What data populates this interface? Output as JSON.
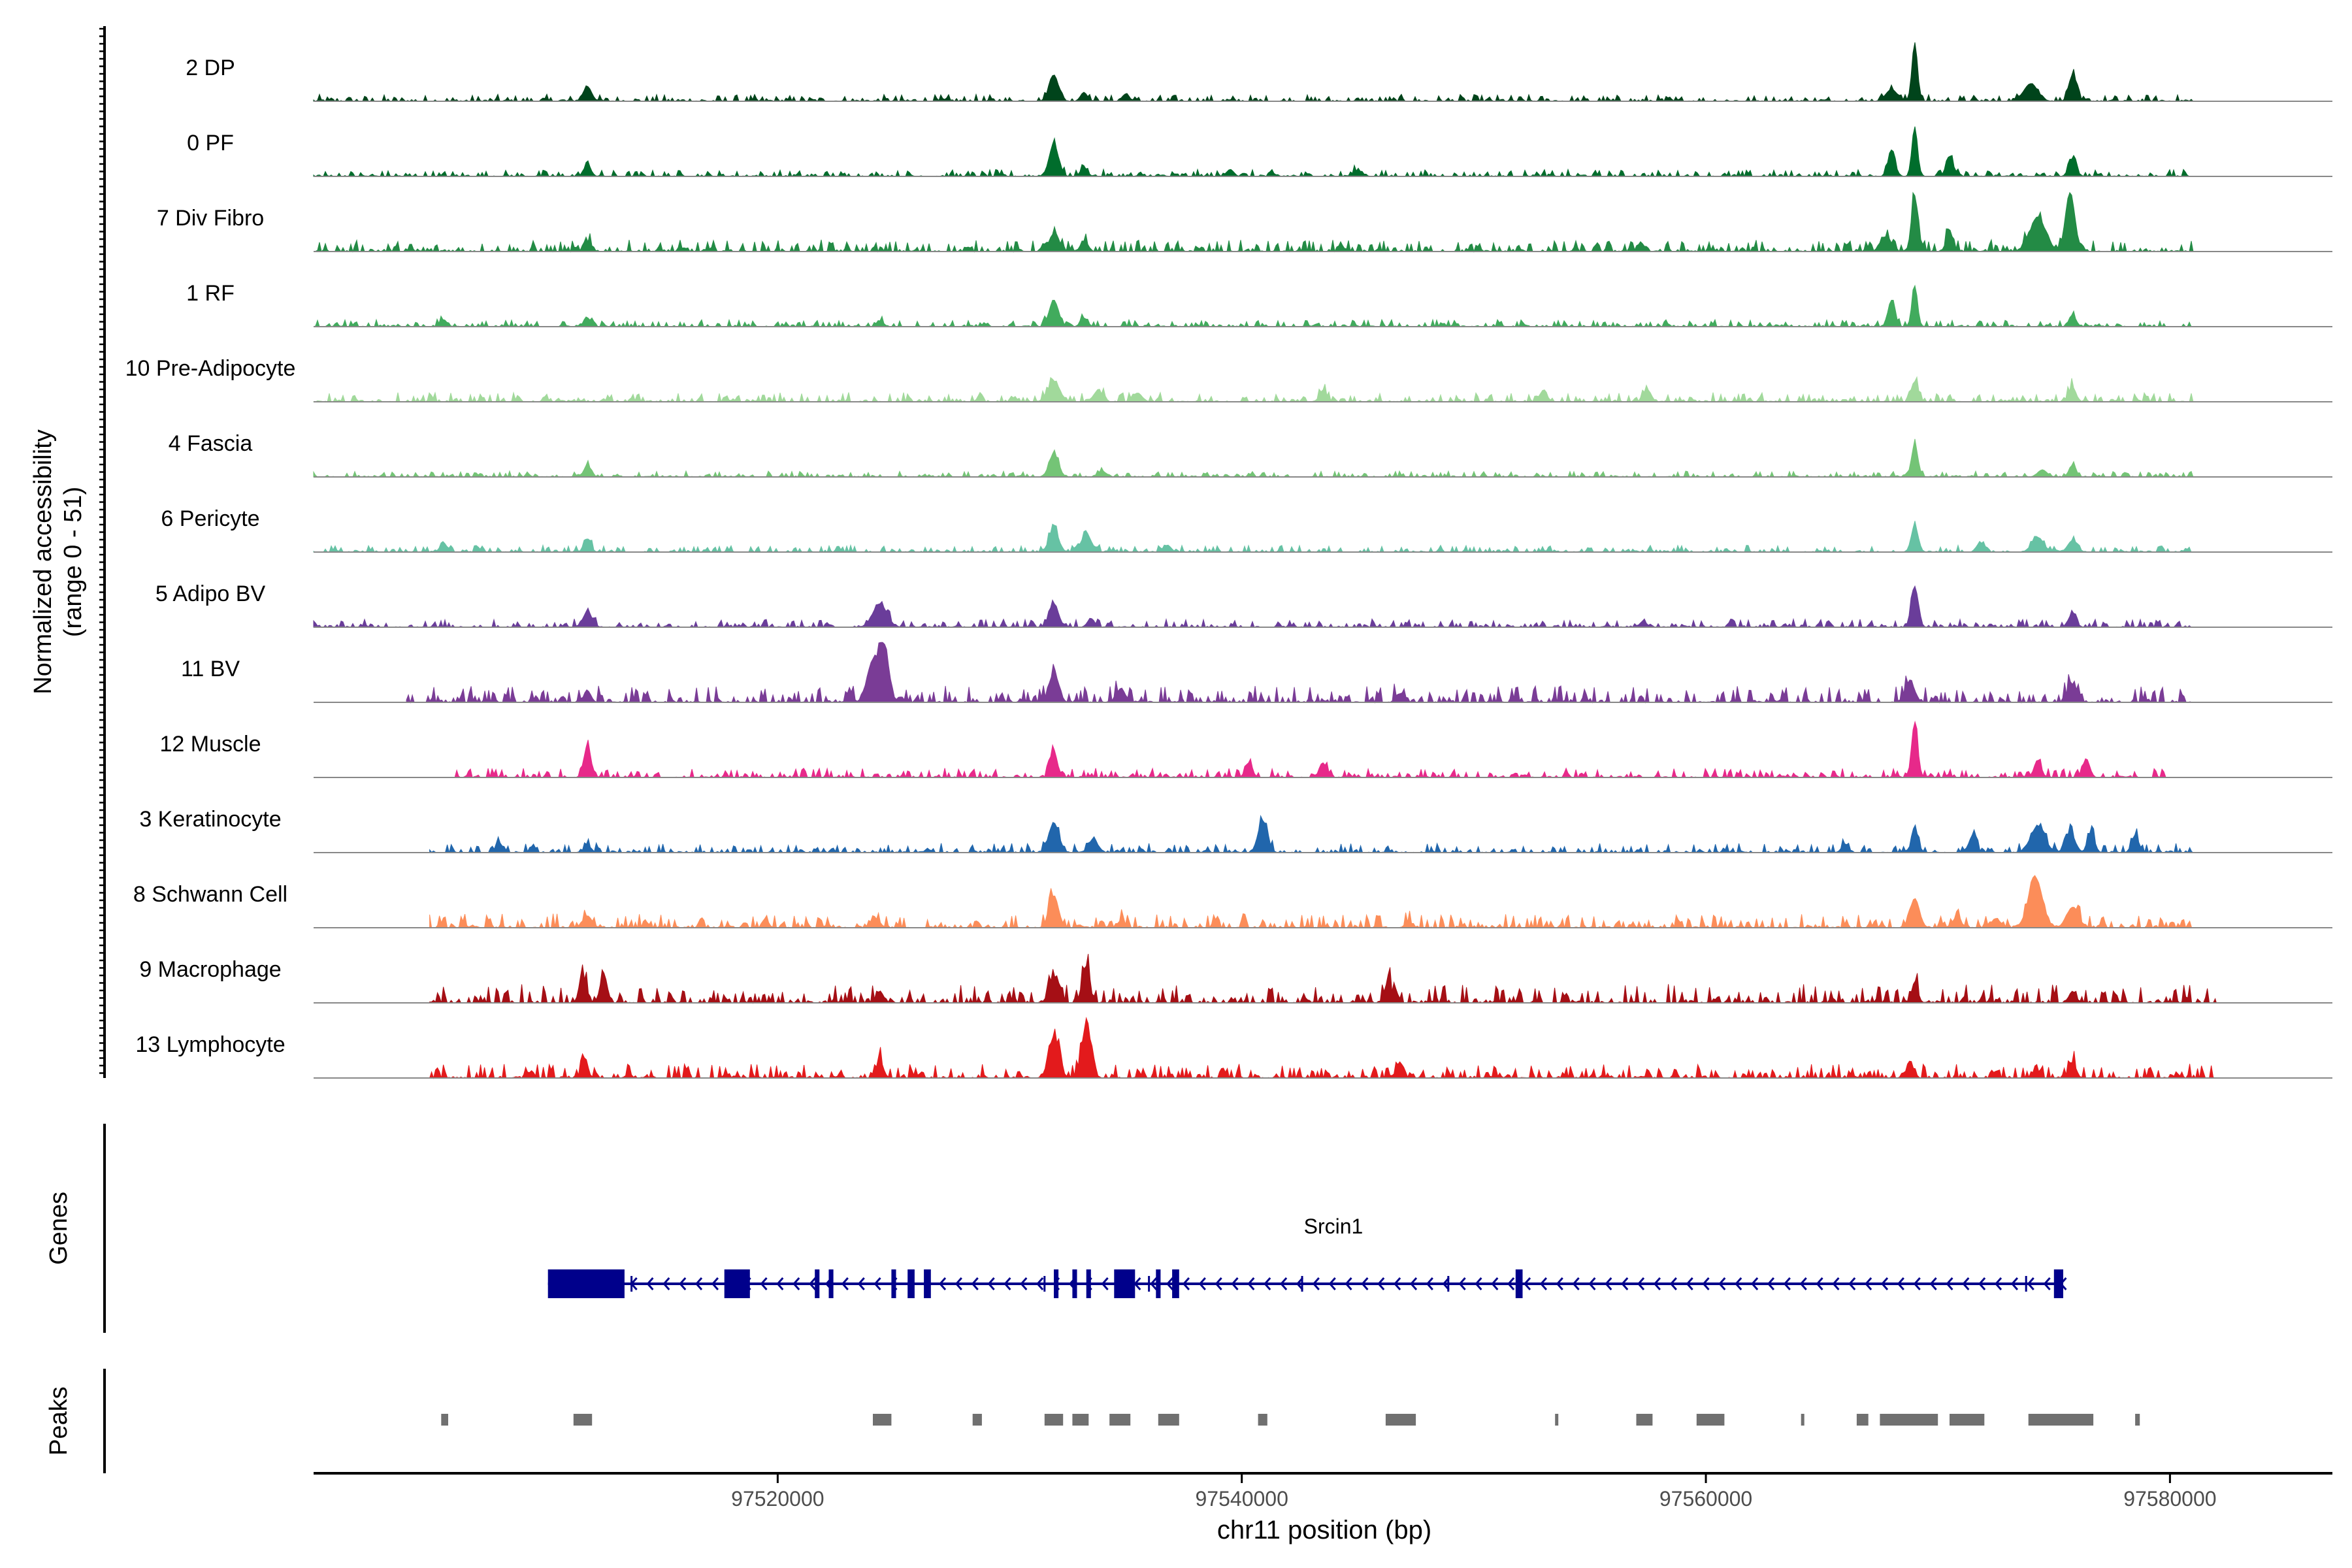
{
  "chart_data": {
    "type": "area",
    "title": "",
    "ylabel_line1": "Normalized accessibility",
    "ylabel_line2": "(range 0 - 51)",
    "ylim": [
      0,
      51
    ],
    "xlabel": "chr11 position (bp)",
    "xlim": [
      97500000,
      97587000
    ],
    "x_ticks": [
      97520000,
      97540000,
      97560000,
      97580000
    ],
    "x_tick_labels": [
      "97520000",
      "97540000",
      "97560000",
      "97580000"
    ],
    "genes_label": "Genes",
    "peaks_label": "Peaks",
    "tracks": [
      {
        "name": "2 DP",
        "color": "#00441b",
        "noise": 0.03,
        "start": 97500000,
        "end": 97581000,
        "peaks": [
          [
            97511800,
            0.25,
            180
          ],
          [
            97531900,
            0.45,
            200
          ],
          [
            97533200,
            0.15,
            150
          ],
          [
            97535000,
            0.12,
            150
          ],
          [
            97568000,
            0.2,
            250
          ],
          [
            97569000,
            1.0,
            120
          ],
          [
            97574000,
            0.3,
            300
          ],
          [
            97575800,
            0.45,
            160
          ]
        ]
      },
      {
        "name": "0 PF",
        "color": "#006d2c",
        "noise": 0.03,
        "start": 97500000,
        "end": 97581000,
        "peaks": [
          [
            97511800,
            0.2,
            150
          ],
          [
            97531900,
            0.55,
            200
          ],
          [
            97533200,
            0.15,
            150
          ],
          [
            97539500,
            0.12,
            150
          ],
          [
            97545000,
            0.1,
            200
          ],
          [
            97568000,
            0.45,
            150
          ],
          [
            97569000,
            0.85,
            120
          ],
          [
            97570500,
            0.35,
            150
          ],
          [
            97575800,
            0.3,
            160
          ]
        ]
      },
      {
        "name": "7 Div Fibro",
        "color": "#238b45",
        "noise": 0.05,
        "start": 97500000,
        "end": 97581000,
        "peaks": [
          [
            97511800,
            0.15,
            150
          ],
          [
            97531900,
            0.3,
            200
          ],
          [
            97533200,
            0.18,
            150
          ],
          [
            97557200,
            0.15,
            150
          ],
          [
            97567700,
            0.25,
            200
          ],
          [
            97569000,
            0.95,
            140
          ],
          [
            97570500,
            0.3,
            150
          ],
          [
            97574300,
            0.55,
            350
          ],
          [
            97575700,
            1.0,
            200
          ]
        ]
      },
      {
        "name": "1 RF",
        "color": "#41ab5d",
        "noise": 0.03,
        "start": 97500000,
        "end": 97581000,
        "peaks": [
          [
            97505600,
            0.12,
            150
          ],
          [
            97511800,
            0.15,
            150
          ],
          [
            97524400,
            0.1,
            150
          ],
          [
            97531900,
            0.45,
            200
          ],
          [
            97533200,
            0.15,
            150
          ],
          [
            97568000,
            0.45,
            150
          ],
          [
            97569000,
            0.7,
            120
          ],
          [
            97575800,
            0.2,
            150
          ]
        ]
      },
      {
        "name": "10 Pre-Adipocyte",
        "color": "#a1d99b",
        "noise": 0.04,
        "start": 97500000,
        "end": 97581000,
        "peaks": [
          [
            97531900,
            0.35,
            250
          ],
          [
            97533800,
            0.18,
            200
          ],
          [
            97535500,
            0.15,
            200
          ],
          [
            97543500,
            0.2,
            150
          ],
          [
            97553000,
            0.2,
            150
          ],
          [
            97557500,
            0.2,
            150
          ],
          [
            97569000,
            0.35,
            150
          ],
          [
            97575800,
            0.25,
            150
          ]
        ]
      },
      {
        "name": "4 Fascia",
        "color": "#74c476",
        "noise": 0.025,
        "start": 97500000,
        "end": 97581000,
        "peaks": [
          [
            97511800,
            0.2,
            150
          ],
          [
            97531900,
            0.4,
            200
          ],
          [
            97534000,
            0.1,
            150
          ],
          [
            97569000,
            0.55,
            140
          ],
          [
            97574500,
            0.12,
            200
          ],
          [
            97575800,
            0.2,
            150
          ]
        ]
      },
      {
        "name": "6 Pericyte",
        "color": "#66c2a4",
        "noise": 0.03,
        "start": 97500000,
        "end": 97581000,
        "peaks": [
          [
            97505600,
            0.15,
            150
          ],
          [
            97511800,
            0.2,
            150
          ],
          [
            97531900,
            0.4,
            200
          ],
          [
            97533300,
            0.3,
            220
          ],
          [
            97536800,
            0.12,
            150
          ],
          [
            97569000,
            0.45,
            150
          ],
          [
            97571800,
            0.15,
            150
          ],
          [
            97574300,
            0.25,
            250
          ],
          [
            97575800,
            0.2,
            200
          ]
        ]
      },
      {
        "name": "5 Adipo BV",
        "color": "#6a3d9a",
        "noise": 0.035,
        "start": 97500000,
        "end": 97581000,
        "peaks": [
          [
            97511800,
            0.25,
            200
          ],
          [
            97524400,
            0.4,
            300
          ],
          [
            97531900,
            0.4,
            200
          ],
          [
            97533500,
            0.15,
            150
          ],
          [
            97557300,
            0.1,
            150
          ],
          [
            97569000,
            0.7,
            150
          ],
          [
            97575800,
            0.25,
            150
          ]
        ]
      },
      {
        "name": "11 BV",
        "color": "#7a3c96",
        "noise": 0.07,
        "start": 97504000,
        "end": 97581000,
        "peaks": [
          [
            97511800,
            0.2,
            150
          ],
          [
            97524100,
            0.7,
            250
          ],
          [
            97524600,
            0.9,
            200
          ],
          [
            97531900,
            0.5,
            200
          ],
          [
            97534800,
            0.2,
            200
          ],
          [
            97546800,
            0.15,
            150
          ],
          [
            97568800,
            0.35,
            200
          ],
          [
            97575800,
            0.3,
            200
          ]
        ]
      },
      {
        "name": "12 Muscle",
        "color": "#e7298a",
        "noise": 0.04,
        "start": 97506000,
        "end": 97580000,
        "peaks": [
          [
            97511800,
            0.55,
            150
          ],
          [
            97531900,
            0.45,
            150
          ],
          [
            97540300,
            0.25,
            150
          ],
          [
            97543500,
            0.25,
            150
          ],
          [
            97569000,
            0.95,
            130
          ],
          [
            97574300,
            0.3,
            150
          ],
          [
            97576400,
            0.3,
            150
          ]
        ]
      },
      {
        "name": "3 Keratinocyte",
        "color": "#2166ac",
        "noise": 0.04,
        "start": 97505000,
        "end": 97581000,
        "peaks": [
          [
            97508000,
            0.15,
            150
          ],
          [
            97511800,
            0.12,
            150
          ],
          [
            97531900,
            0.5,
            220
          ],
          [
            97533600,
            0.22,
            200
          ],
          [
            97540900,
            0.55,
            200
          ],
          [
            97566000,
            0.15,
            150
          ],
          [
            97569000,
            0.45,
            130
          ],
          [
            97571500,
            0.3,
            150
          ],
          [
            97574300,
            0.45,
            300
          ],
          [
            97575700,
            0.35,
            200
          ],
          [
            97576600,
            0.35,
            150
          ],
          [
            97578500,
            0.3,
            150
          ]
        ]
      },
      {
        "name": "8 Schwann Cell",
        "color": "#fc8d59",
        "noise": 0.06,
        "start": 97505000,
        "end": 97581000,
        "peaks": [
          [
            97511800,
            0.2,
            200
          ],
          [
            97524200,
            0.15,
            200
          ],
          [
            97531900,
            0.55,
            200
          ],
          [
            97534800,
            0.12,
            150
          ],
          [
            97547200,
            0.1,
            150
          ],
          [
            97569000,
            0.5,
            200
          ],
          [
            97570800,
            0.15,
            200
          ],
          [
            97572500,
            0.15,
            200
          ],
          [
            97574200,
            0.85,
            300
          ],
          [
            97575800,
            0.35,
            250
          ]
        ]
      },
      {
        "name": "9 Macrophage",
        "color": "#a50f15",
        "noise": 0.08,
        "start": 97505000,
        "end": 97582000,
        "peaks": [
          [
            97511600,
            0.45,
            150
          ],
          [
            97512500,
            0.5,
            150
          ],
          [
            97524400,
            0.2,
            150
          ],
          [
            97531900,
            0.45,
            200
          ],
          [
            97533300,
            0.6,
            150
          ],
          [
            97546300,
            0.35,
            150
          ],
          [
            97569000,
            0.35,
            130
          ],
          [
            97575800,
            0.2,
            150
          ]
        ]
      },
      {
        "name": "13 Lymphocyte",
        "color": "#e31a1c",
        "noise": 0.06,
        "start": 97505000,
        "end": 97582000,
        "peaks": [
          [
            97511700,
            0.35,
            120
          ],
          [
            97524400,
            0.3,
            150
          ],
          [
            97531900,
            0.7,
            220
          ],
          [
            97533300,
            0.9,
            200
          ],
          [
            97546800,
            0.25,
            150
          ],
          [
            97568800,
            0.25,
            150
          ],
          [
            97575800,
            0.25,
            150
          ]
        ]
      }
    ],
    "gene": {
      "name": "Srcin1",
      "color": "#00008b",
      "start": 97510100,
      "end": 97575400,
      "strand": "-",
      "exons": [
        [
          97510100,
          97513400
        ],
        [
          97517700,
          97518800
        ],
        [
          97521600,
          97521800
        ],
        [
          97522200,
          97522400
        ],
        [
          97524900,
          97525100
        ],
        [
          97525600,
          97525900
        ],
        [
          97526300,
          97526600
        ],
        [
          97531900,
          97532100
        ],
        [
          97532700,
          97532900
        ],
        [
          97533300,
          97533500
        ],
        [
          97534500,
          97535400
        ],
        [
          97536300,
          97536500
        ],
        [
          97537000,
          97537300
        ],
        [
          97551800,
          97552100
        ],
        [
          97575000,
          97575400
        ]
      ],
      "ticks": [
        97513700,
        97531500,
        97536000,
        97542600,
        97548900,
        97573800
      ]
    },
    "peaks_bed": [
      [
        97505500,
        97505800
      ],
      [
        97511200,
        97512000
      ],
      [
        97524100,
        97524900
      ],
      [
        97528400,
        97528800
      ],
      [
        97531500,
        97532300
      ],
      [
        97532700,
        97533400
      ],
      [
        97534300,
        97535200
      ],
      [
        97536400,
        97537300
      ],
      [
        97540700,
        97541100
      ],
      [
        97546200,
        97547500
      ],
      [
        97553500,
        97553600
      ],
      [
        97557000,
        97557700
      ],
      [
        97559600,
        97560800
      ],
      [
        97564100,
        97564200
      ],
      [
        97566500,
        97567000
      ],
      [
        97567500,
        97570000
      ],
      [
        97570500,
        97572000
      ],
      [
        97573900,
        97576700
      ],
      [
        97578500,
        97578700
      ]
    ]
  }
}
